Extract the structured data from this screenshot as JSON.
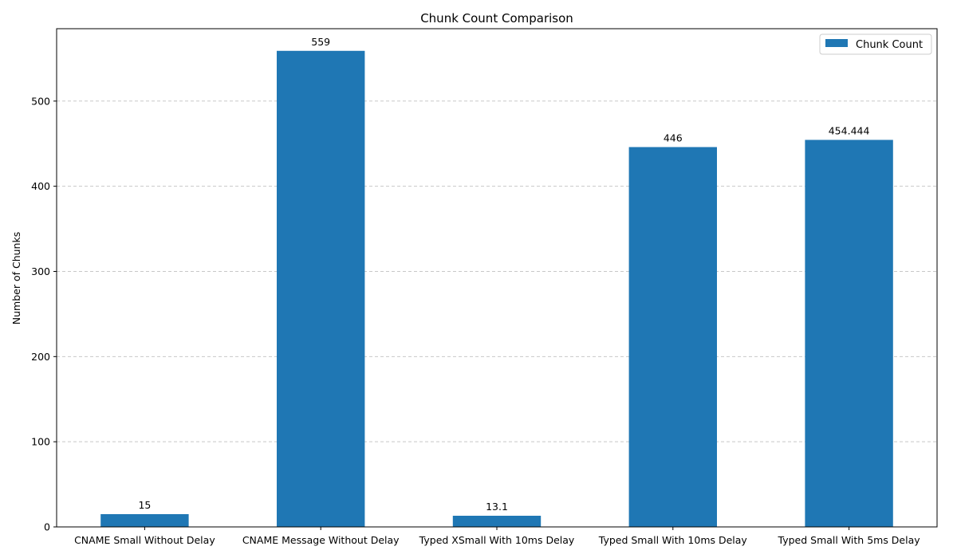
{
  "chart_data": {
    "type": "bar",
    "title": "Chunk Count Comparison",
    "xlabel": "",
    "ylabel": "Number of Chunks",
    "categories": [
      "CNAME Small Without Delay",
      "CNAME Message Without Delay",
      "Typed XSmall With 10ms Delay",
      "Typed Small With 10ms Delay",
      "Typed Small With 5ms Delay"
    ],
    "series": [
      {
        "name": "Chunk Count",
        "values": [
          15,
          559,
          13.1,
          446,
          454.444
        ],
        "labels": [
          "15",
          "559",
          "13.1",
          "446",
          "454.444"
        ],
        "color": "#1f77b4"
      }
    ],
    "ylim": [
      0,
      585
    ],
    "yticks": [
      0,
      100,
      200,
      300,
      400,
      500
    ],
    "grid": "y-dashed",
    "legend_position": "top-right"
  }
}
